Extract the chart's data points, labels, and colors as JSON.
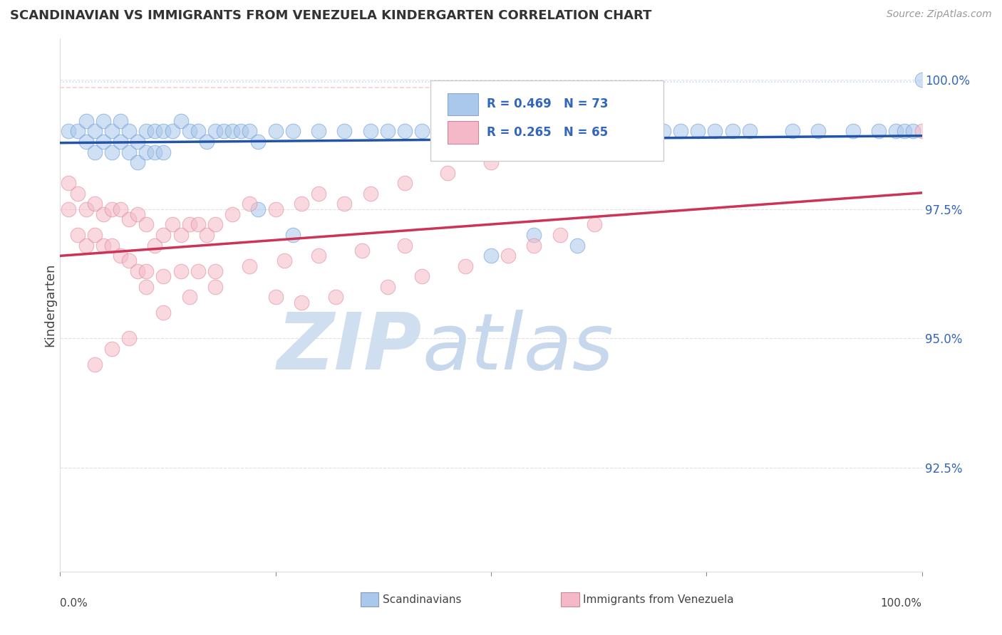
{
  "title": "SCANDINAVIAN VS IMMIGRANTS FROM VENEZUELA KINDERGARTEN CORRELATION CHART",
  "source": "Source: ZipAtlas.com",
  "ylabel": "Kindergarten",
  "xlim": [
    0.0,
    1.0
  ],
  "ylim": [
    0.905,
    1.008
  ],
  "yticks": [
    0.925,
    0.95,
    0.975,
    1.0
  ],
  "ytick_labels": [
    "92.5%",
    "95.0%",
    "97.5%",
    "100.0%"
  ],
  "legend_labels": [
    "Scandinavians",
    "Immigrants from Venezuela"
  ],
  "legend_r_blue": "R = 0.469",
  "legend_n_blue": "N = 73",
  "legend_r_pink": "R = 0.265",
  "legend_n_pink": "N = 65",
  "blue_color": "#aac8ec",
  "blue_edge_color": "#6699cc",
  "pink_color": "#f5b8c8",
  "pink_edge_color": "#dd8899",
  "blue_line_color": "#2255aa",
  "pink_line_color": "#cc3355",
  "background_color": "#ffffff",
  "blue_scatter_x": [
    0.01,
    0.02,
    0.03,
    0.03,
    0.04,
    0.04,
    0.05,
    0.05,
    0.06,
    0.06,
    0.07,
    0.07,
    0.08,
    0.08,
    0.09,
    0.09,
    0.1,
    0.1,
    0.11,
    0.11,
    0.12,
    0.12,
    0.13,
    0.14,
    0.15,
    0.16,
    0.17,
    0.18,
    0.19,
    0.2,
    0.21,
    0.22,
    0.23,
    0.25,
    0.27,
    0.3,
    0.33,
    0.36,
    0.38,
    0.4,
    0.42,
    0.44,
    0.46,
    0.48,
    0.5,
    0.52,
    0.54,
    0.56,
    0.58,
    0.6,
    0.62,
    0.64,
    0.66,
    0.68,
    0.7,
    0.72,
    0.74,
    0.76,
    0.78,
    0.8,
    0.85,
    0.88,
    0.92,
    0.95,
    0.97,
    0.98,
    0.99,
    1.0,
    0.23,
    0.27,
    0.5,
    0.55,
    0.6
  ],
  "blue_scatter_y": [
    0.99,
    0.99,
    0.992,
    0.988,
    0.99,
    0.986,
    0.992,
    0.988,
    0.99,
    0.986,
    0.992,
    0.988,
    0.99,
    0.986,
    0.988,
    0.984,
    0.99,
    0.986,
    0.99,
    0.986,
    0.99,
    0.986,
    0.99,
    0.992,
    0.99,
    0.99,
    0.988,
    0.99,
    0.99,
    0.99,
    0.99,
    0.99,
    0.988,
    0.99,
    0.99,
    0.99,
    0.99,
    0.99,
    0.99,
    0.99,
    0.99,
    0.99,
    0.99,
    0.99,
    0.99,
    0.99,
    0.99,
    0.99,
    0.99,
    0.99,
    0.99,
    0.99,
    0.99,
    0.99,
    0.99,
    0.99,
    0.99,
    0.99,
    0.99,
    0.99,
    0.99,
    0.99,
    0.99,
    0.99,
    0.99,
    0.99,
    0.99,
    1.0,
    0.975,
    0.97,
    0.966,
    0.97,
    0.968
  ],
  "pink_scatter_x": [
    0.01,
    0.01,
    0.02,
    0.02,
    0.03,
    0.03,
    0.04,
    0.04,
    0.05,
    0.05,
    0.06,
    0.06,
    0.07,
    0.07,
    0.08,
    0.08,
    0.09,
    0.09,
    0.1,
    0.1,
    0.11,
    0.12,
    0.13,
    0.14,
    0.15,
    0.16,
    0.17,
    0.18,
    0.2,
    0.22,
    0.25,
    0.28,
    0.3,
    0.33,
    0.36,
    0.4,
    0.45,
    0.5,
    1.0,
    0.1,
    0.12,
    0.14,
    0.16,
    0.18,
    0.22,
    0.26,
    0.3,
    0.35,
    0.4,
    0.25,
    0.28,
    0.32,
    0.38,
    0.42,
    0.47,
    0.52,
    0.55,
    0.58,
    0.62,
    0.12,
    0.15,
    0.18,
    0.08,
    0.06,
    0.04
  ],
  "pink_scatter_y": [
    0.98,
    0.975,
    0.978,
    0.97,
    0.975,
    0.968,
    0.976,
    0.97,
    0.974,
    0.968,
    0.975,
    0.968,
    0.975,
    0.966,
    0.973,
    0.965,
    0.974,
    0.963,
    0.972,
    0.963,
    0.968,
    0.97,
    0.972,
    0.97,
    0.972,
    0.972,
    0.97,
    0.972,
    0.974,
    0.976,
    0.975,
    0.976,
    0.978,
    0.976,
    0.978,
    0.98,
    0.982,
    0.984,
    0.99,
    0.96,
    0.962,
    0.963,
    0.963,
    0.963,
    0.964,
    0.965,
    0.966,
    0.967,
    0.968,
    0.958,
    0.957,
    0.958,
    0.96,
    0.962,
    0.964,
    0.966,
    0.968,
    0.97,
    0.972,
    0.955,
    0.958,
    0.96,
    0.95,
    0.948,
    0.945
  ]
}
